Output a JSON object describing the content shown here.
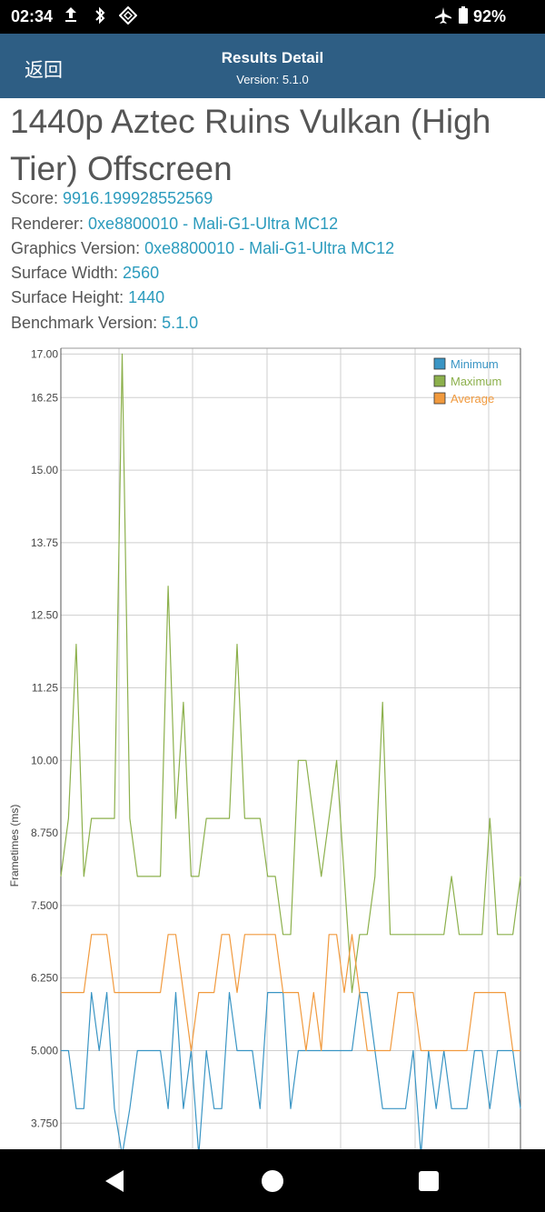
{
  "status_bar": {
    "time": "02:34",
    "icons": [
      "upload-icon",
      "bluetooth-icon",
      "nfc-icon"
    ],
    "right_icons": [
      "airplane-mode-icon",
      "battery-icon"
    ],
    "battery": "92%"
  },
  "app_bar": {
    "back_label": "返回",
    "title": "Results Detail",
    "subtitle": "Version: 5.1.0"
  },
  "benchmark": {
    "title": "1440p Aztec Ruins Vulkan (High Tier) Offscreen",
    "rows": [
      {
        "label": "Score: ",
        "value": "9916.199928552569"
      },
      {
        "label": "Renderer: ",
        "value": "0xe8800010 - Mali-G1-Ultra MC12"
      },
      {
        "label": "Graphics Version: ",
        "value": "0xe8800010 - Mali-G1-Ultra MC12"
      },
      {
        "label": "Surface Width: ",
        "value": "2560"
      },
      {
        "label": "Surface Height: ",
        "value": "1440"
      },
      {
        "label": "Benchmark Version: ",
        "value": "5.1.0"
      }
    ]
  },
  "chart_data": {
    "type": "line",
    "title": "",
    "xlabel": "",
    "ylabel": "Frametimes (ms)",
    "ylim": [
      3.3,
      17.1
    ],
    "yticks": [
      "17.00",
      "16.25",
      "15.00",
      "13.75",
      "12.50",
      "11.25",
      "10.00",
      "8.750",
      "7.500",
      "6.250",
      "5.000",
      "3.750"
    ],
    "grid": true,
    "legend_position": "top-right",
    "series": [
      {
        "name": "Minimum",
        "color": "#3a95c4",
        "values": [
          5,
          5,
          4,
          4,
          6,
          5,
          6,
          4,
          3.2,
          4,
          5,
          5,
          5,
          5,
          4,
          6,
          4,
          5,
          3.2,
          5,
          4,
          4,
          6,
          5,
          5,
          5,
          4,
          6,
          6,
          6,
          4,
          5,
          5,
          5,
          5,
          5,
          5,
          5,
          5,
          6,
          6,
          5,
          4,
          4,
          4,
          4,
          5,
          3.2,
          5,
          4,
          5,
          4,
          4,
          4,
          5,
          5,
          4,
          5,
          5,
          5,
          4
        ]
      },
      {
        "name": "Maximum",
        "color": "#8cb04c",
        "values": [
          8,
          9,
          12,
          8,
          9,
          9,
          9,
          9,
          17,
          9,
          8,
          8,
          8,
          8,
          13,
          9,
          11,
          8,
          8,
          9,
          9,
          9,
          9,
          12,
          9,
          9,
          9,
          8,
          8,
          7,
          7,
          10,
          10,
          9,
          8,
          9,
          10,
          8,
          6,
          7,
          7,
          8,
          11,
          7,
          7,
          7,
          7,
          7,
          7,
          7,
          7,
          8,
          7,
          7,
          7,
          7,
          9,
          7,
          7,
          7,
          8
        ]
      },
      {
        "name": "Average",
        "color": "#f19a3e",
        "values": [
          6,
          6,
          6,
          6,
          7,
          7,
          7,
          6,
          6,
          6,
          6,
          6,
          6,
          6,
          7,
          7,
          6,
          5,
          6,
          6,
          6,
          7,
          7,
          6,
          7,
          7,
          7,
          7,
          7,
          6,
          6,
          6,
          5,
          6,
          5,
          7,
          7,
          6,
          7,
          6,
          5,
          5,
          5,
          5,
          6,
          6,
          6,
          5,
          5,
          5,
          5,
          5,
          5,
          5,
          6,
          6,
          6,
          6,
          6,
          5,
          5
        ]
      }
    ]
  },
  "nav_bar": {
    "buttons": [
      "back-nav-icon",
      "home-nav-icon",
      "recents-nav-icon"
    ]
  }
}
